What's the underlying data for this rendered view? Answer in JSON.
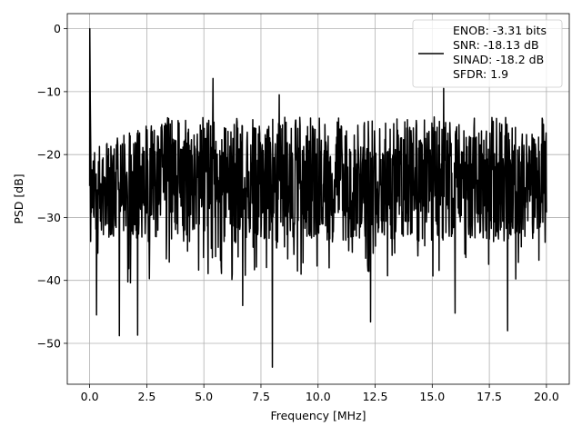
{
  "chart_data": {
    "type": "line",
    "title": "",
    "xlabel": "Frequency [MHz]",
    "ylabel": "PSD [dB]",
    "xlim": [
      -0.98,
      21.0
    ],
    "ylim": [
      -56.5,
      2.4
    ],
    "xticks": [
      0.0,
      2.5,
      5.0,
      7.5,
      10.0,
      12.5,
      15.0,
      17.5,
      20.0
    ],
    "xtick_labels": [
      "0.0",
      "2.5",
      "5.0",
      "7.5",
      "10.0",
      "12.5",
      "15.0",
      "17.5",
      "20.0"
    ],
    "yticks": [
      0,
      -10,
      -20,
      -30,
      -40,
      -50
    ],
    "ytick_labels": [
      "0",
      "−10",
      "−20",
      "−30",
      "−40",
      "−50"
    ],
    "grid": true,
    "legend_position": "top-right",
    "series": [
      {
        "legend_lines": [
          "ENOB: -3.31 bits",
          "SNR: -18.13 dB",
          "SINAD: -18.2 dB",
          "SFDR: 1.9"
        ],
        "color": "#000000",
        "peak": {
          "x": 0.0,
          "y": 0.0
        },
        "noise_floor_db": -24,
        "x_range": [
          0.0,
          20.0
        ],
        "notable_minima": [
          {
            "x": 0.3,
            "y": -45.5
          },
          {
            "x": 1.3,
            "y": -48.8
          },
          {
            "x": 2.1,
            "y": -48.7
          },
          {
            "x": 6.7,
            "y": -44.0
          },
          {
            "x": 8.0,
            "y": -53.8
          },
          {
            "x": 12.3,
            "y": -46.6
          },
          {
            "x": 16.0,
            "y": -45.2
          },
          {
            "x": 18.3,
            "y": -48.0
          }
        ],
        "notable_maxima": [
          {
            "x": 5.4,
            "y": -7.9
          },
          {
            "x": 15.5,
            "y": -9.5
          },
          {
            "x": 8.3,
            "y": -10.5
          }
        ]
      }
    ]
  }
}
